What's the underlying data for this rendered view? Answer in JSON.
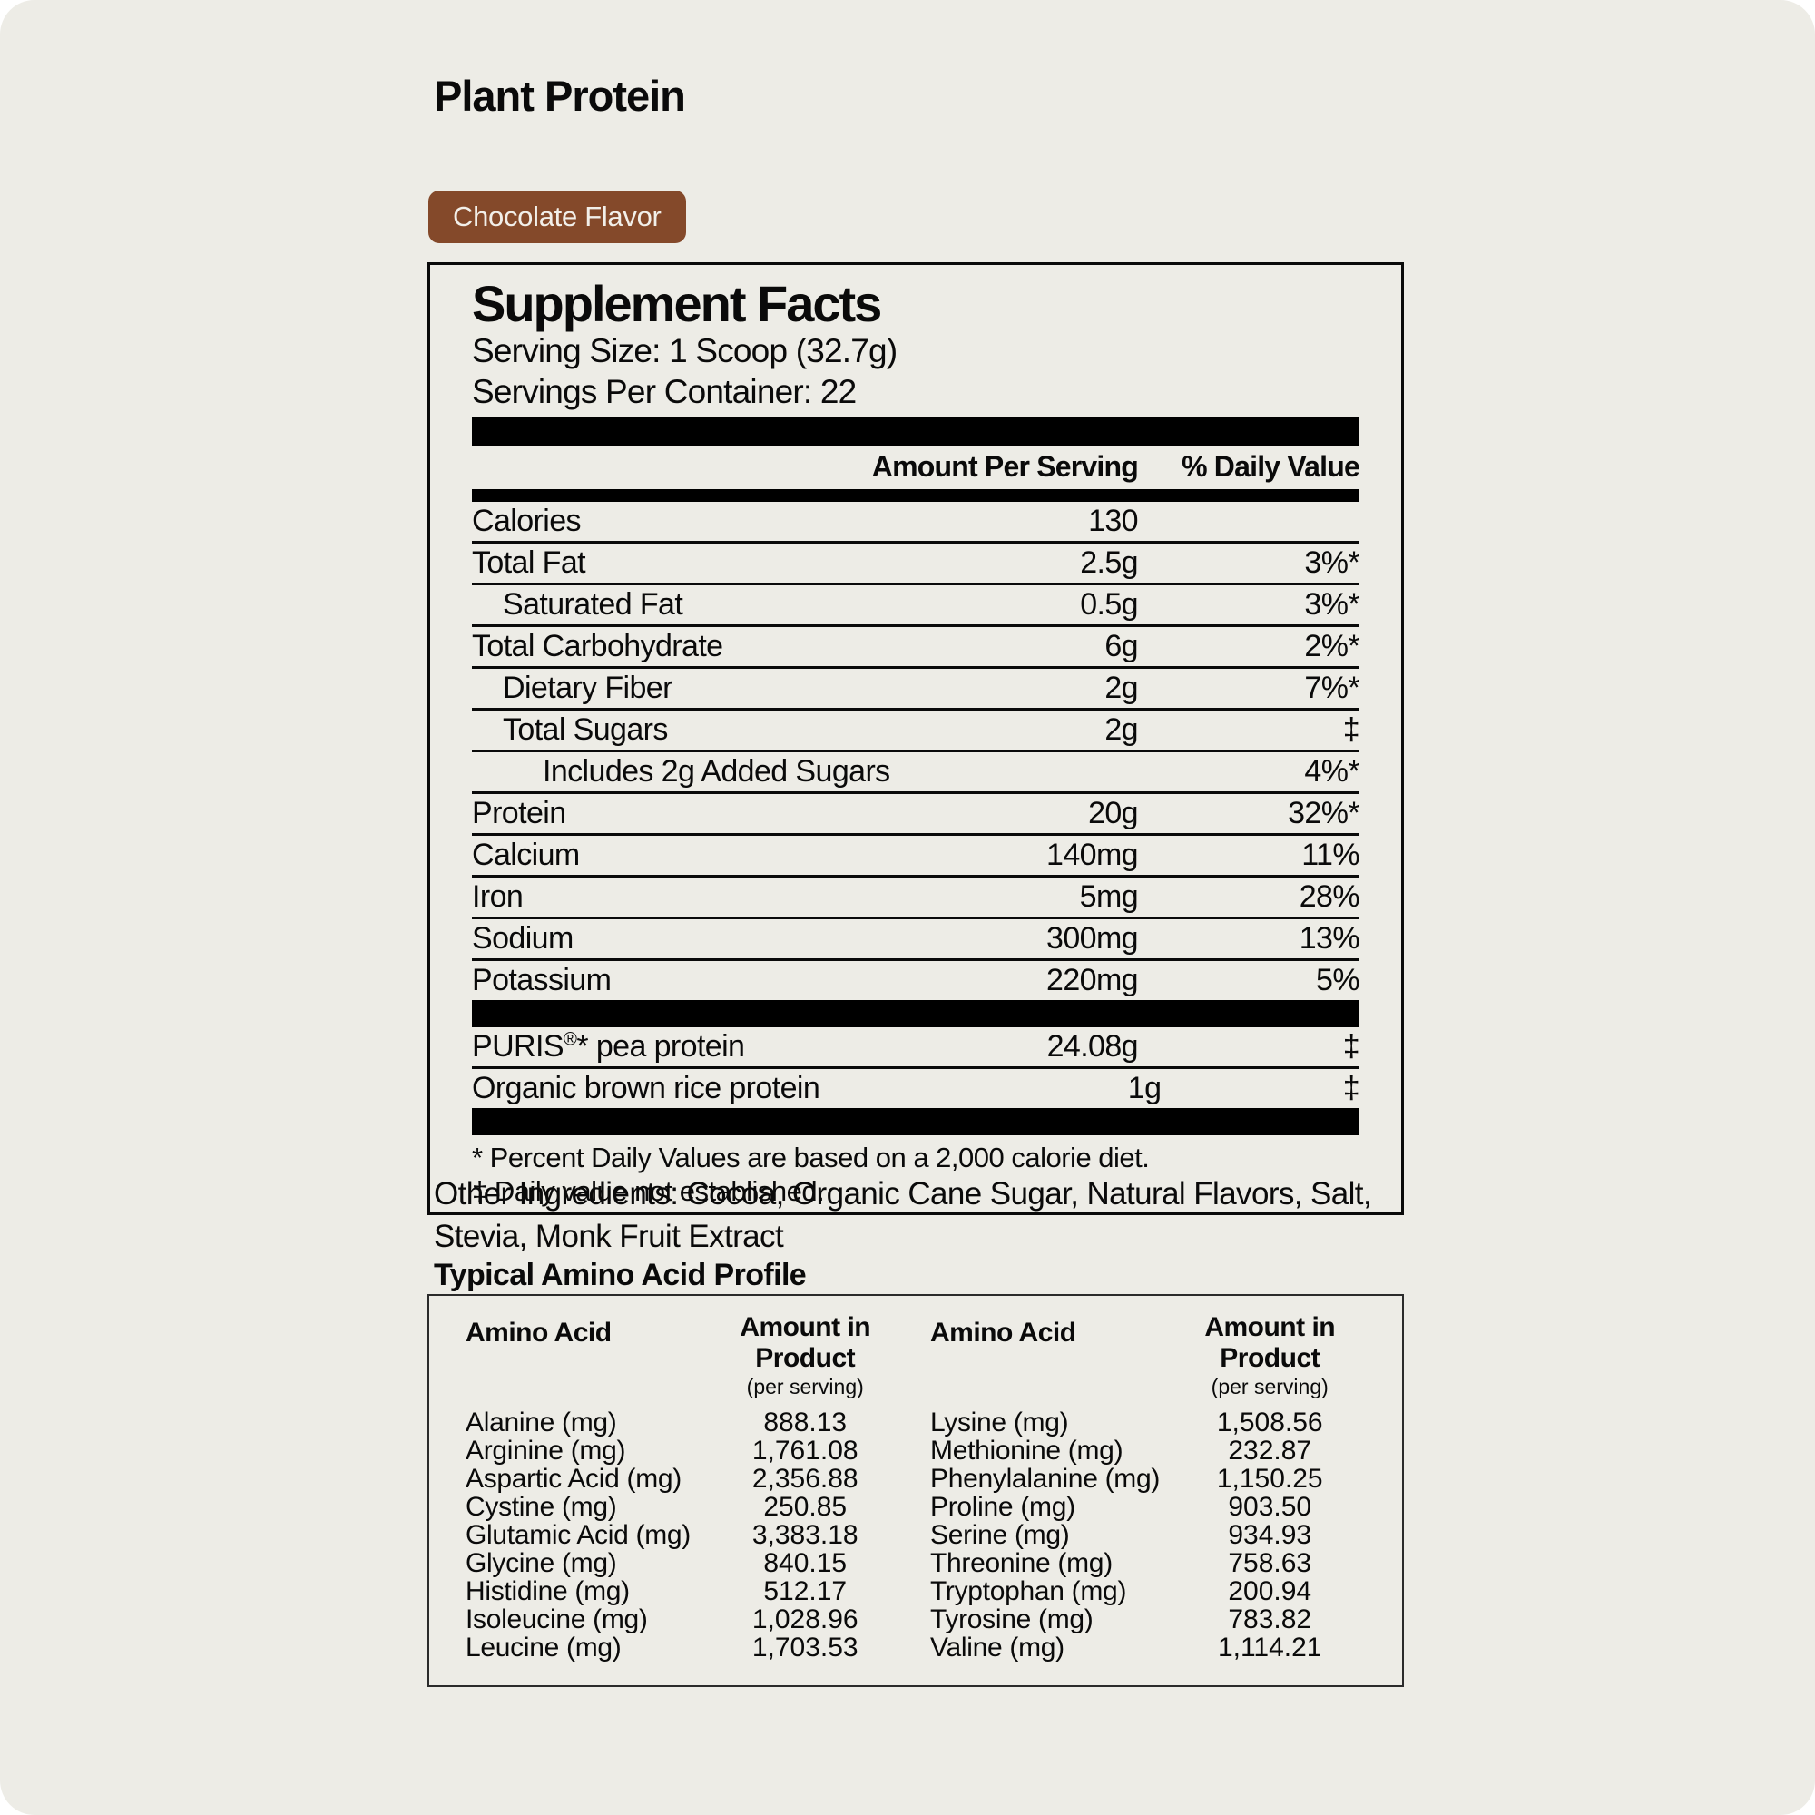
{
  "theme": {
    "page_bg": "#edece6",
    "badge_bg": "#84492a",
    "badge_text": "#f2efe9",
    "rule_color": "#0a0a0a"
  },
  "header": {
    "title": "Plant Protein",
    "flavor_badge": "Chocolate Flavor"
  },
  "supplement_facts": {
    "title": "Supplement Facts",
    "serving_size": "Serving Size: 1 Scoop (32.7g)",
    "servings_per_container": "Servings Per Container: 22",
    "col_amount": "Amount Per Serving",
    "col_dv": "% Daily Value",
    "rows": [
      {
        "label": "Calories",
        "amount": "130",
        "dv": "",
        "indent": 0
      },
      {
        "label": "Total Fat",
        "amount": "2.5g",
        "dv": "3%*",
        "indent": 0
      },
      {
        "label": "Saturated Fat",
        "amount": "0.5g",
        "dv": "3%*",
        "indent": 1
      },
      {
        "label": "Total Carbohydrate",
        "amount": "6g",
        "dv": "2%*",
        "indent": 0
      },
      {
        "label": "Dietary Fiber",
        "amount": "2g",
        "dv": "7%*",
        "indent": 1
      },
      {
        "label": "Total Sugars",
        "amount": "2g",
        "dv": "‡",
        "indent": 1
      },
      {
        "label": "Includes 2g Added Sugars",
        "amount": "",
        "dv": "4%*",
        "indent": 2
      },
      {
        "label": "Protein",
        "amount": "20g",
        "dv": "32%*",
        "indent": 0
      },
      {
        "label": "Calcium",
        "amount": "140mg",
        "dv": "11%",
        "indent": 0
      },
      {
        "label": "Iron",
        "amount": "5mg",
        "dv": "28%",
        "indent": 0
      },
      {
        "label": "Sodium",
        "amount": "300mg",
        "dv": "13%",
        "indent": 0
      },
      {
        "label": "Potassium",
        "amount": "220mg",
        "dv": "5%",
        "indent": 0
      }
    ],
    "proprietary_rows": [
      {
        "label": "PURIS®* pea protein",
        "amount": "24.08g",
        "dv": "‡"
      },
      {
        "label": "Organic brown rice protein",
        "amount": "1g",
        "dv": "‡"
      }
    ],
    "footnotes": [
      "* Percent Daily Values are based on a 2,000 calorie diet.",
      "‡ Daily value not established."
    ]
  },
  "other_ingredients": "Other Ingredients: Cocoa, Organic Cane Sugar, Natural Flavors, Salt, Stevia, Monk Fruit Extract",
  "amino_profile": {
    "title": "Typical Amino Acid Profile",
    "col_amino": "Amino Acid",
    "col_amount": "Amount in Product",
    "col_amount_sub": "(per serving)",
    "left": [
      {
        "name": "Alanine (mg)",
        "value": "888.13"
      },
      {
        "name": "Arginine (mg)",
        "value": "1,761.08"
      },
      {
        "name": "Aspartic Acid (mg)",
        "value": "2,356.88"
      },
      {
        "name": "Cystine (mg)",
        "value": "250.85"
      },
      {
        "name": "Glutamic Acid (mg)",
        "value": "3,383.18"
      },
      {
        "name": "Glycine (mg)",
        "value": "840.15"
      },
      {
        "name": "Histidine (mg)",
        "value": "512.17"
      },
      {
        "name": "Isoleucine (mg)",
        "value": "1,028.96"
      },
      {
        "name": "Leucine (mg)",
        "value": "1,703.53"
      }
    ],
    "right": [
      {
        "name": "Lysine (mg)",
        "value": "1,508.56"
      },
      {
        "name": "Methionine (mg)",
        "value": "232.87"
      },
      {
        "name": "Phenylalanine (mg)",
        "value": "1,150.25"
      },
      {
        "name": "Proline (mg)",
        "value": "903.50"
      },
      {
        "name": "Serine (mg)",
        "value": "934.93"
      },
      {
        "name": "Threonine (mg)",
        "value": "758.63"
      },
      {
        "name": "Tryptophan (mg)",
        "value": "200.94"
      },
      {
        "name": "Tyrosine (mg)",
        "value": "783.82"
      },
      {
        "name": "Valine (mg)",
        "value": "1,114.21"
      }
    ]
  }
}
